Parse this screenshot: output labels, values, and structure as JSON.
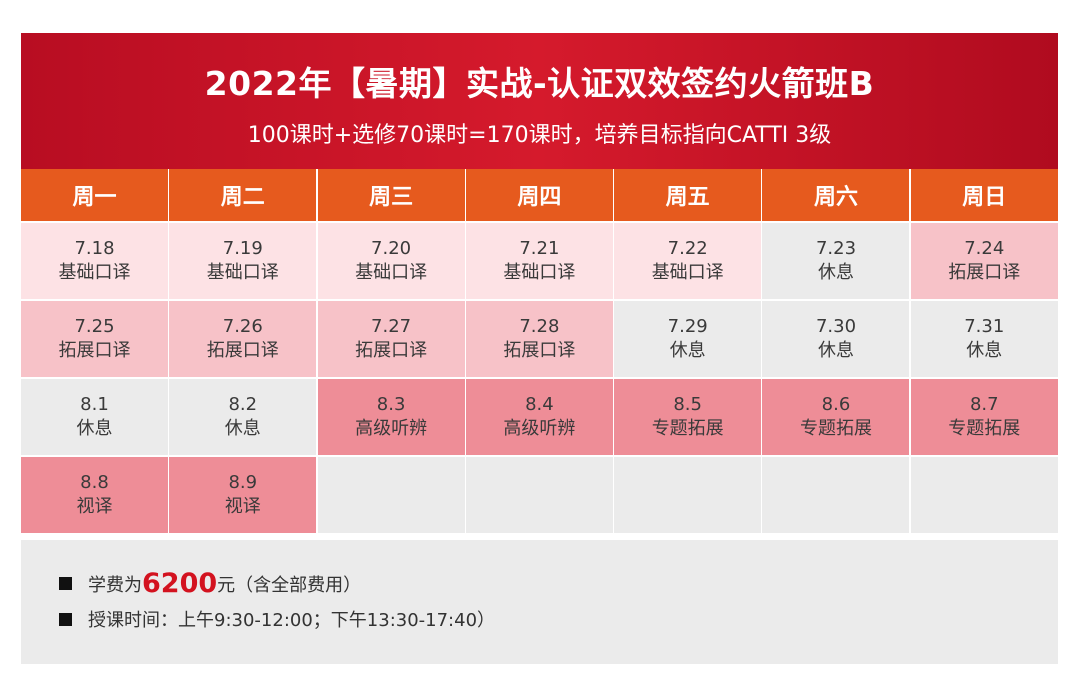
{
  "banner": {
    "title": "2022年【暑期】实战-认证双效签约火箭班B",
    "subtitle": "100课时+选修70课时=170课时，培养目标指向CATTI 3级"
  },
  "weekdays": [
    "周一",
    "周二",
    "周三",
    "周四",
    "周五",
    "周六",
    "周日"
  ],
  "rows": [
    [
      {
        "date": "7.18",
        "label": "基础口译",
        "tone": "light"
      },
      {
        "date": "7.19",
        "label": "基础口译",
        "tone": "light"
      },
      {
        "date": "7.20",
        "label": "基础口译",
        "tone": "light"
      },
      {
        "date": "7.21",
        "label": "基础口译",
        "tone": "light"
      },
      {
        "date": "7.22",
        "label": "基础口译",
        "tone": "light"
      },
      {
        "date": "7.23",
        "label": "休息",
        "tone": "rest"
      },
      {
        "date": "7.24",
        "label": "拓展口译",
        "tone": "mid"
      }
    ],
    [
      {
        "date": "7.25",
        "label": "拓展口译",
        "tone": "mid"
      },
      {
        "date": "7.26",
        "label": "拓展口译",
        "tone": "mid"
      },
      {
        "date": "7.27",
        "label": "拓展口译",
        "tone": "mid"
      },
      {
        "date": "7.28",
        "label": "拓展口译",
        "tone": "mid"
      },
      {
        "date": "7.29",
        "label": "休息",
        "tone": "rest"
      },
      {
        "date": "7.30",
        "label": "休息",
        "tone": "rest"
      },
      {
        "date": "7.31",
        "label": "休息",
        "tone": "rest"
      }
    ],
    [
      {
        "date": "8.1",
        "label": "休息",
        "tone": "rest"
      },
      {
        "date": "8.2",
        "label": "休息",
        "tone": "rest"
      },
      {
        "date": "8.3",
        "label": "高级听辨",
        "tone": "dark"
      },
      {
        "date": "8.4",
        "label": "高级听辨",
        "tone": "dark"
      },
      {
        "date": "8.5",
        "label": "专题拓展",
        "tone": "dark"
      },
      {
        "date": "8.6",
        "label": "专题拓展",
        "tone": "dark"
      },
      {
        "date": "8.7",
        "label": "专题拓展",
        "tone": "dark"
      }
    ],
    [
      {
        "date": "8.8",
        "label": "视译",
        "tone": "dark"
      },
      {
        "date": "8.9",
        "label": "视译",
        "tone": "dark"
      },
      {
        "date": "",
        "label": "",
        "tone": "empty"
      },
      {
        "date": "",
        "label": "",
        "tone": "empty"
      },
      {
        "date": "",
        "label": "",
        "tone": "empty"
      },
      {
        "date": "",
        "label": "",
        "tone": "empty"
      },
      {
        "date": "",
        "label": "",
        "tone": "empty"
      }
    ]
  ],
  "footer": {
    "fee_prefix": "学费为",
    "fee_amount": "6200",
    "fee_suffix": "元（含全部费用）",
    "schedule": "授课时间：上午9:30-12:00；下午13:30-17:40）"
  },
  "colors": {
    "banner": "#c8102e",
    "header": "#e65a1e",
    "light": "#fde2e5",
    "mid": "#f7c2c8",
    "dark": "#ee8d97",
    "rest": "#ebebeb",
    "price": "#d3121f"
  }
}
